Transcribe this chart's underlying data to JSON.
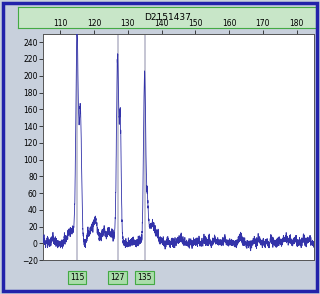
{
  "title": "D2151437",
  "title_bg": "#c8e6c8",
  "title_border": "#44aa44",
  "x_min": 105,
  "x_max": 185,
  "y_min": -20,
  "y_max": 250,
  "x_ticks": [
    110,
    120,
    130,
    140,
    150,
    160,
    170,
    180
  ],
  "y_ticks": [
    -20,
    0,
    20,
    40,
    60,
    80,
    100,
    120,
    140,
    160,
    180,
    200,
    220,
    240
  ],
  "vlines": [
    115,
    127,
    135
  ],
  "vline_color": "#bbbbcc",
  "markers": [
    115,
    127,
    135
  ],
  "marker_bg": "#aaddaa",
  "marker_border": "#44aa44",
  "line_color": "#3333aa",
  "plot_bg": "#ffffff",
  "outer_bg": "#c8d0dc",
  "outer_border": "#2222aa",
  "peak1_x": 115,
  "peak1_y": 240,
  "peak1b_x": 116.0,
  "peak1b_y": 155,
  "peak2_x": 127,
  "peak2_y": 220,
  "peak2b_x": 127.8,
  "peak2b_y": 140,
  "peak3_x": 135,
  "peak3_y": 205,
  "peak3b_x": 135.8,
  "peak3b_y": 45,
  "noise_seed": 12
}
